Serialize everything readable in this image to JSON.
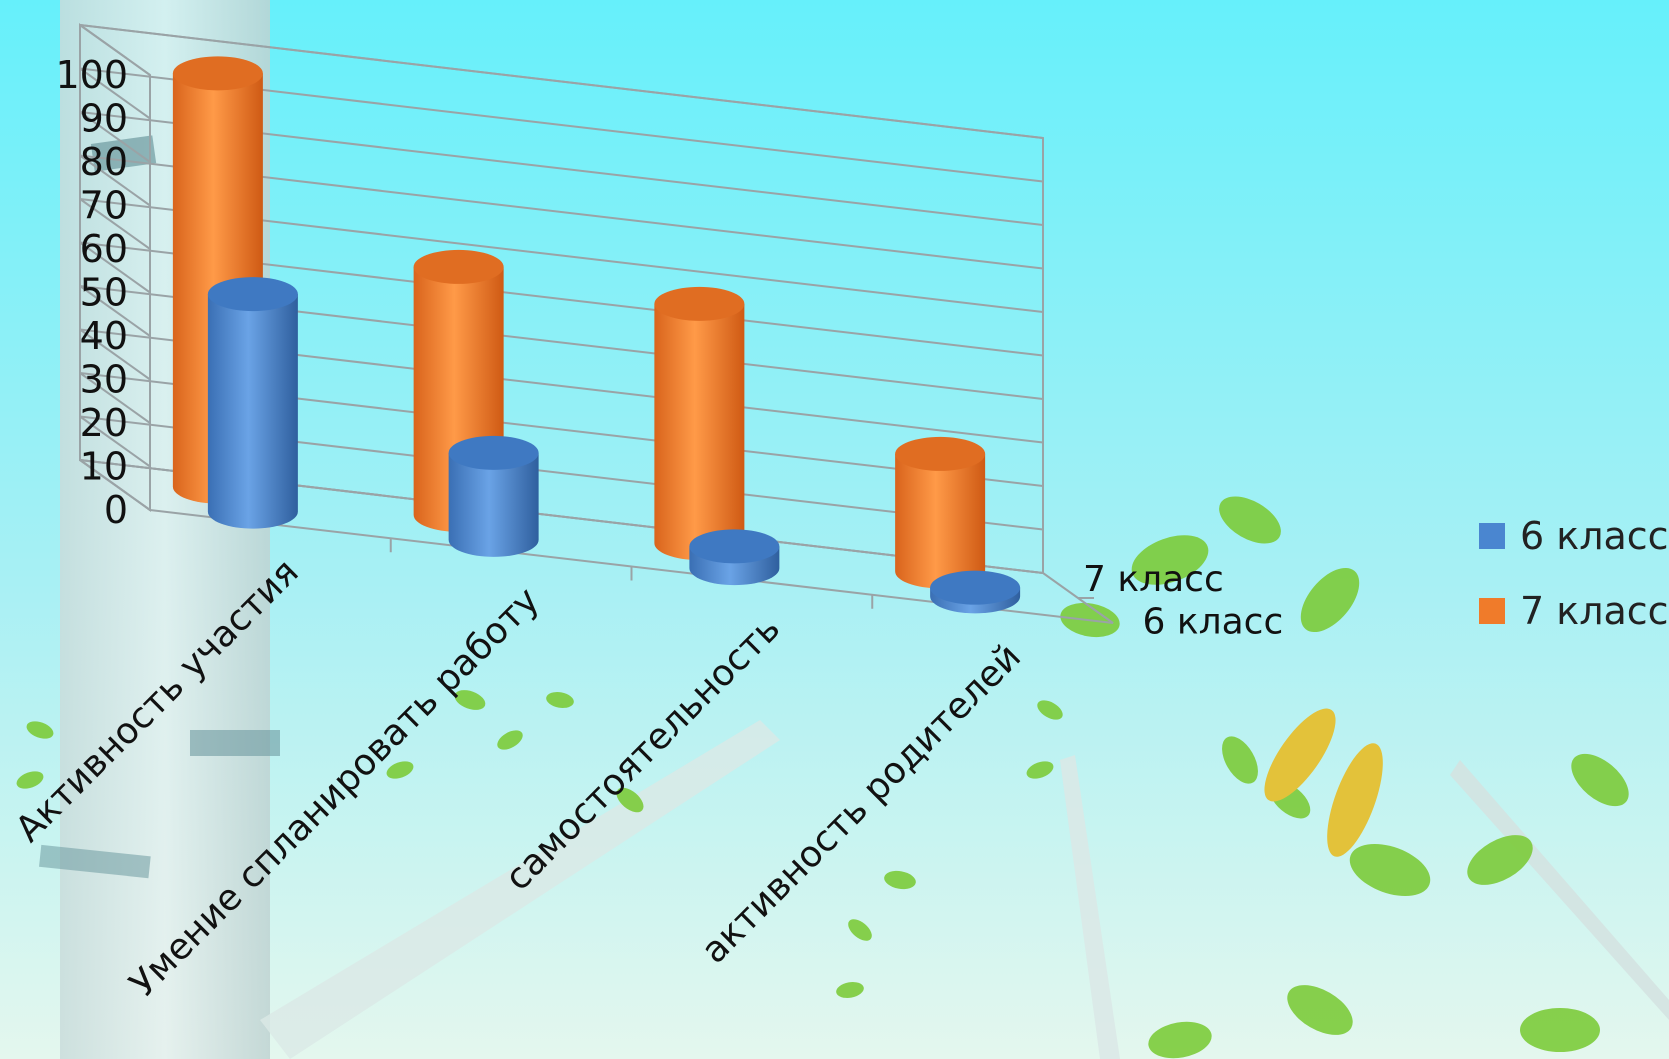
{
  "colors": {
    "sky_top": "#6cf2fc",
    "sky_bottom": "#d8f6f0",
    "series_6": "#4a86d0",
    "series_7": "#f07b2a",
    "grid": "#9aa3a6",
    "leaf": "#7ccb3a",
    "trunk": "#d7e6e4"
  },
  "chart_data": {
    "type": "bar",
    "title": "",
    "xlabel": "",
    "ylabel": "",
    "ylim": [
      0,
      100
    ],
    "y_ticks": [
      "0",
      "10",
      "20",
      "30",
      "40",
      "50",
      "60",
      "70",
      "80",
      "90",
      "100"
    ],
    "categories": [
      "Активность участия",
      "Умение спланировать работу",
      "самостоятельность",
      "активность родителей"
    ],
    "series": [
      {
        "name": "6 класс",
        "values": [
          50,
          20,
          5,
          2
        ]
      },
      {
        "name": "7 класс",
        "values": [
          95,
          57,
          55,
          27
        ]
      }
    ],
    "depth_labels": [
      "7 класс",
      "6 класс"
    ],
    "legend": {
      "position": "right",
      "entries": [
        "6 класс",
        "7 класс"
      ]
    },
    "grid": true
  }
}
